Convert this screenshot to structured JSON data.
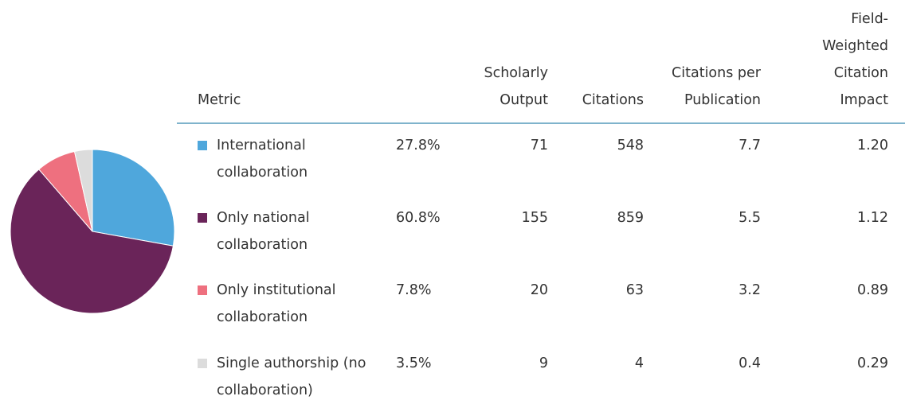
{
  "chart_data": {
    "type": "pie",
    "categories": [
      "International collaboration",
      "Only national collaboration",
      "Only institutional collaboration",
      "Single authorship (no collaboration)"
    ],
    "values": [
      27.8,
      60.8,
      7.8,
      3.5
    ],
    "value_labels": [
      "27.8%",
      "60.8%",
      "7.8%",
      "3.5%"
    ],
    "colors": [
      "#4fa7dc",
      "#6a2459",
      "#ee707f",
      "#dcdcdc"
    ]
  },
  "table": {
    "metric_header": "Metric",
    "columns": [
      "Scholarly Output",
      "Citations",
      "Citations per Publication",
      "Field-Weighted Citation Impact"
    ],
    "rows": [
      [
        71,
        548,
        7.7,
        "1.20"
      ],
      [
        155,
        859,
        5.5,
        1.12
      ],
      [
        20,
        63,
        3.2,
        0.89
      ],
      [
        9,
        4,
        0.4,
        0.29
      ]
    ]
  }
}
